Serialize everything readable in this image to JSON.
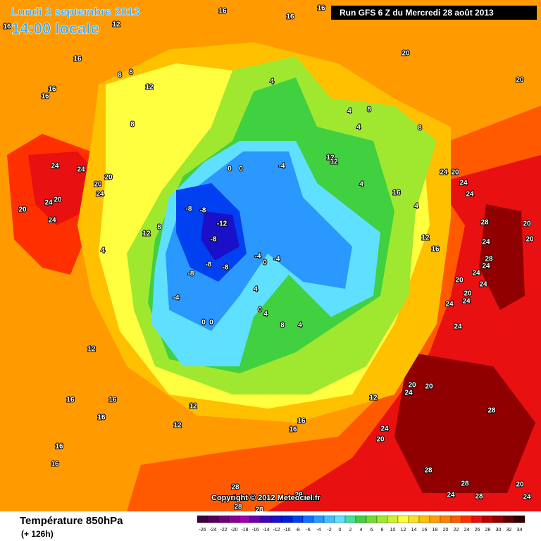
{
  "header": {
    "date": "Lundi 2 septembre 2013",
    "time": "14:00 locale",
    "run": "Run GFS 6 Z du Mercredi 28 août 2013"
  },
  "footer": {
    "copyright": "Copyright © 2012 Meteociel.fr",
    "parameter": "Température 850hPa",
    "lead": "(+ 126h)"
  },
  "legend": {
    "values": [
      -26,
      -24,
      -22,
      -20,
      -18,
      -16,
      -14,
      -12,
      -10,
      -8,
      -6,
      -4,
      -2,
      0,
      2,
      4,
      6,
      8,
      10,
      12,
      14,
      16,
      18,
      20,
      22,
      24,
      26,
      28,
      30,
      32,
      34
    ],
    "colors": [
      "#3a0040",
      "#55005a",
      "#700078",
      "#8a0095",
      "#a000b0",
      "#6a00b0",
      "#4000c0",
      "#1a10c8",
      "#0020d8",
      "#0040f0",
      "#1070ff",
      "#2a98ff",
      "#40c0ff",
      "#60e0ff",
      "#40e0a0",
      "#40d040",
      "#70dc30",
      "#a0e830",
      "#d0f030",
      "#ffff40",
      "#ffe020",
      "#ffc000",
      "#ffa000",
      "#ff8000",
      "#ff5a00",
      "#ff3000",
      "#e81010",
      "#c00000",
      "#900000",
      "#600000",
      "#300000"
    ]
  },
  "map": {
    "labels": [
      16,
      16,
      16,
      16,
      12,
      16,
      16,
      16,
      8,
      8,
      12,
      8,
      4,
      4,
      8,
      4,
      8,
      20,
      20,
      12,
      12,
      4,
      16,
      4,
      24,
      24,
      20,
      20,
      24,
      20,
      24,
      20,
      24,
      12,
      8,
      4,
      0,
      0,
      -4,
      -8,
      -8,
      -12,
      -8,
      -4,
      -4,
      0,
      -8,
      -8,
      -8,
      -4,
      4,
      0,
      4,
      0,
      0,
      8,
      4,
      12,
      16,
      16,
      16,
      12,
      12,
      16,
      16,
      12,
      24,
      20,
      24,
      24,
      28,
      24,
      28,
      24,
      24,
      20,
      24,
      20,
      24,
      24,
      24,
      20,
      20,
      24,
      24,
      20,
      28,
      28,
      28,
      24,
      28,
      20,
      24,
      28,
      28,
      28,
      28,
      16,
      16,
      20,
      20,
      12,
      16
    ]
  }
}
